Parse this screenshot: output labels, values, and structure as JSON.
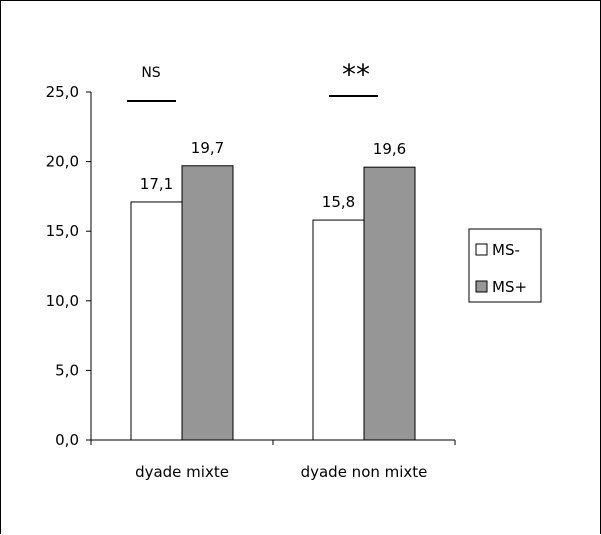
{
  "chart_data": {
    "type": "bar",
    "title": "",
    "xlabel": "",
    "ylabel": "",
    "categories": [
      "dyade mixte",
      "dyade non mixte"
    ],
    "series": [
      {
        "name": "MS-",
        "values": [
          17.1,
          15.8
        ],
        "labels": [
          "17,1",
          "15,8"
        ],
        "color": "#ffffff"
      },
      {
        "name": "MS+",
        "values": [
          19.7,
          19.6
        ],
        "labels": [
          "19,7",
          "19,6"
        ],
        "color": "#969696"
      }
    ],
    "ylim": [
      0,
      25
    ],
    "yticks": [
      0,
      5,
      10,
      15,
      20,
      25
    ],
    "ytick_labels": [
      "0,0",
      "5,0",
      "10,0",
      "15,0",
      "20,0",
      "25,0"
    ],
    "grid": false,
    "legend_position": "right",
    "significance": [
      "NS",
      "**"
    ]
  }
}
